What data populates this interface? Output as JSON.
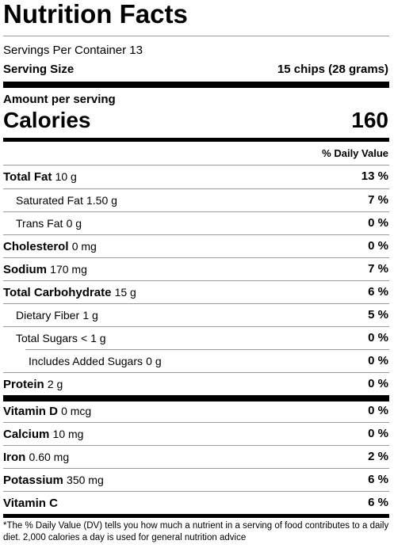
{
  "title": "Nutrition Facts",
  "servings_per_container": "Servings Per Container 13",
  "serving_size_label": "Serving Size",
  "serving_size_value": "15 chips (28 grams)",
  "amount_per_serving": "Amount per serving",
  "calories_label": "Calories",
  "calories_value": "160",
  "daily_value_header": "% Daily Value",
  "nutrients": [
    {
      "name": "Total Fat",
      "amount": "10 g",
      "dv": "13 %"
    },
    {
      "name": "Saturated Fat",
      "amount": "1.50 g",
      "dv": "7 %"
    },
    {
      "name": "Trans Fat",
      "amount": "0 g",
      "dv": "0 %"
    },
    {
      "name": "Cholesterol",
      "amount": "0 mg",
      "dv": "0 %"
    },
    {
      "name": "Sodium",
      "amount": "170 mg",
      "dv": "7 %"
    },
    {
      "name": "Total Carbohydrate",
      "amount": "15 g",
      "dv": "6 %"
    },
    {
      "name": "Dietary Fiber",
      "amount": "1 g",
      "dv": "5 %"
    },
    {
      "name": "Total Sugars",
      "amount": "< 1 g",
      "dv": "0 %"
    },
    {
      "name": "Includes Added Sugars",
      "amount": "0 g",
      "dv": "0 %"
    },
    {
      "name": "Protein",
      "amount": "2 g",
      "dv": "0 %"
    }
  ],
  "vitamins": [
    {
      "name": "Vitamin D",
      "amount": "0 mcg",
      "dv": "0 %"
    },
    {
      "name": "Calcium",
      "amount": "10 mg",
      "dv": "0 %"
    },
    {
      "name": "Iron",
      "amount": "0.60 mg",
      "dv": "2 %"
    },
    {
      "name": "Potassium",
      "amount": "350 mg",
      "dv": "6 %"
    },
    {
      "name": "Vitamin C",
      "amount": "",
      "dv": "6 %"
    }
  ],
  "footnote": "*The % Daily Value (DV) tells you how much a nutrient in a serving of food contributes to a daily diet. 2,000 calories a day is used for general nutrition advice"
}
